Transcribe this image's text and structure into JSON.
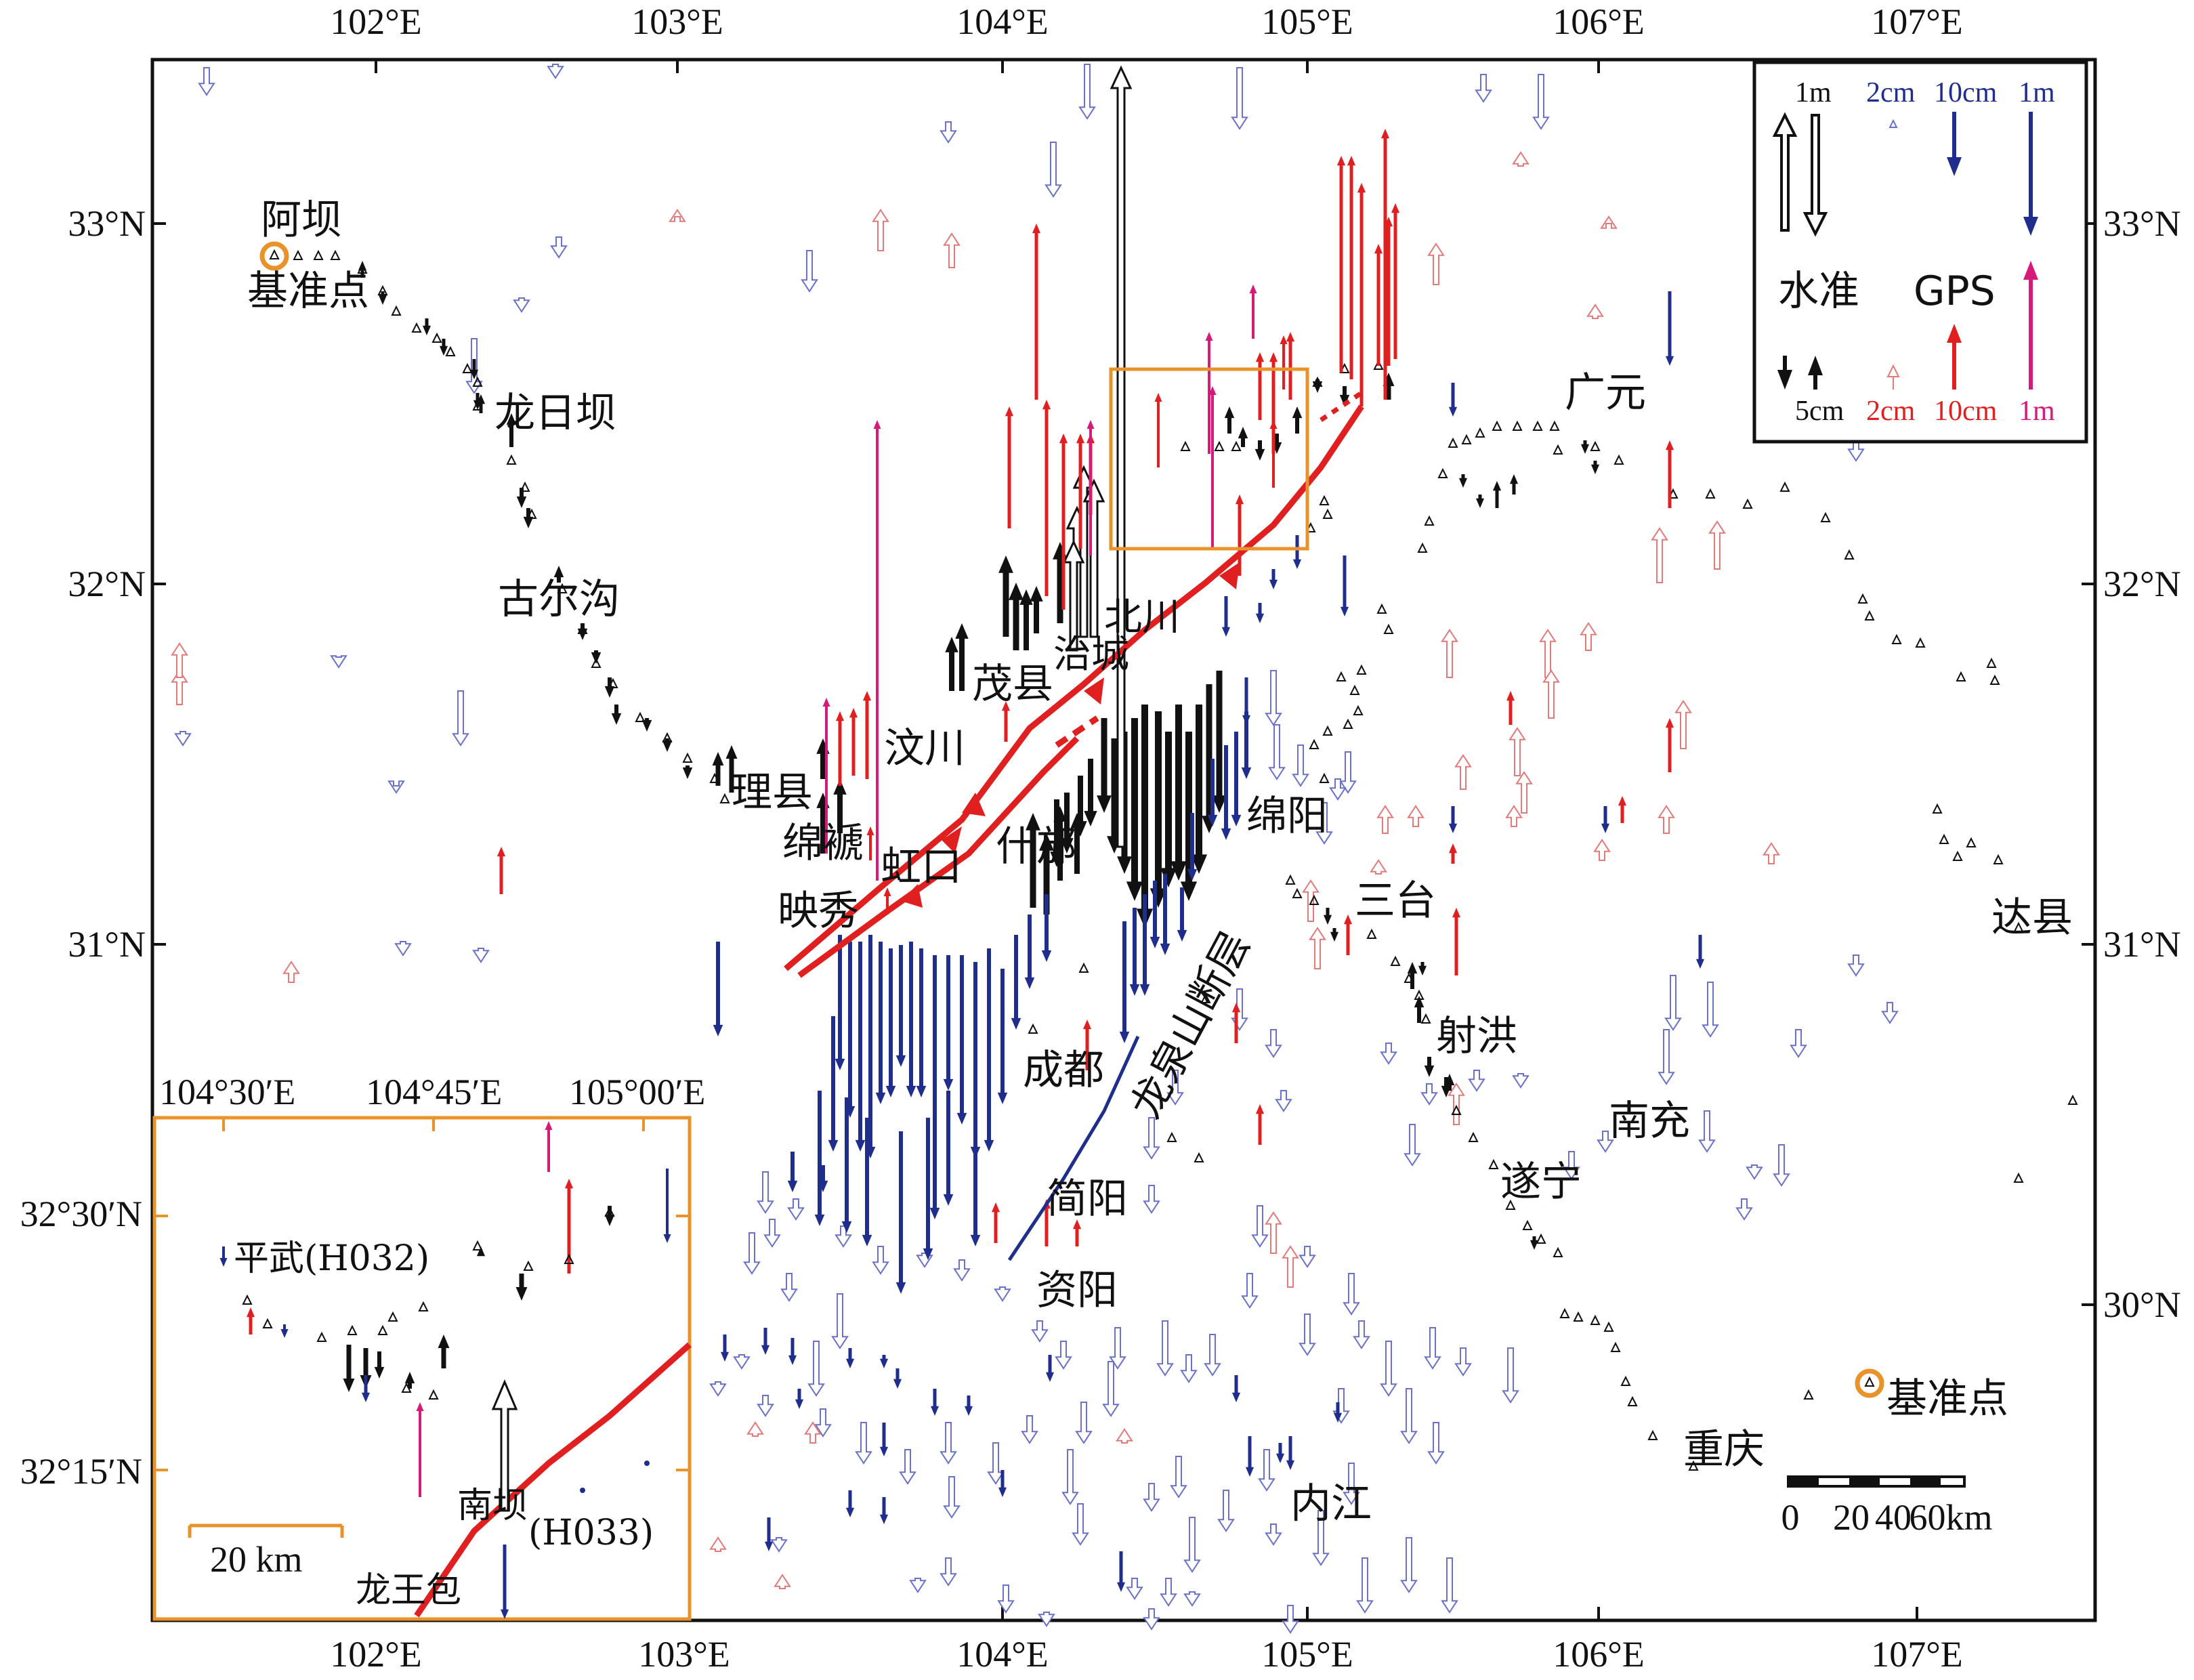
{
  "map": {
    "lon_ticks_top": [
      "102°E",
      "103°E",
      "104°E",
      "105°E",
      "106°E",
      "107°E"
    ],
    "lon_ticks_bottom": [
      "102°E",
      "103°E",
      "104°E",
      "105°E",
      "106°E",
      "107°E"
    ],
    "lat_ticks_left": [
      "33°N",
      "32°N",
      "31°N"
    ],
    "lat_ticks_right": [
      "33°N",
      "32°N",
      "31°N",
      "30°N"
    ],
    "places": {
      "aba": "阿坝",
      "jizhundian_nw": "基准点",
      "longriba": "龙日坝",
      "guergou": "古尔沟",
      "lixian": "理县",
      "wenchuan": "汶川",
      "maoxian": "茂县",
      "beichuan": "北川",
      "leicheng": "治城",
      "mianzhu": "绵褫",
      "hongkou": "虹口",
      "yingxiu": "映秀",
      "shifang": "什邡",
      "mianyang": "绵阳",
      "santai": "三台",
      "guangyuan": "广元",
      "dazhou": "达县",
      "shehong": "射洪",
      "nanchong": "南充",
      "suining": "遂宁",
      "chengdu": "成都",
      "jianyang": "简阳",
      "ziyang": "资阳",
      "neijiang": "内江",
      "chongqing": "重庆",
      "jizhundian_se": "基准点",
      "fault_longquan": "龙泉山断层"
    },
    "scale_bar": {
      "labels": [
        "0",
        "20",
        "40",
        "60km"
      ]
    }
  },
  "legend": {
    "level_label": "水准",
    "gps_label": "GPS",
    "row1": {
      "level_1m": "1m",
      "gps_2cm": "2cm",
      "gps_10cm": "10cm",
      "gps_1m": "1m"
    },
    "row2": {
      "level_5cm": "5cm",
      "gps_2cm": "2cm",
      "gps_10cm": "10cm",
      "gps_1m": "1m"
    },
    "colors": {
      "level": "#111111",
      "gps_vertical_down": "#1f2d8c",
      "gps_vertical_up": "#e02020",
      "gps_1m_up": "#d61a7a"
    }
  },
  "inset": {
    "lon_ticks": [
      "104°30′E",
      "104°45′E",
      "105°00′E"
    ],
    "lat_ticks": [
      "32°30′N",
      "32°15′N"
    ],
    "stations": {
      "pingwu": "平武(H032)",
      "nanba": "南坝",
      "nanba_code": "(H033)",
      "longwangbao": "龙王包"
    },
    "scale_label": "20 km",
    "frame_color": "#e8922a",
    "fault_color": "#e02020"
  },
  "colors": {
    "fault": "#e02020",
    "longquan_fault": "#1f2d8c",
    "study_box": "#e8922a",
    "open_blue": "#6a72c8",
    "open_red": "#e37a7a"
  }
}
